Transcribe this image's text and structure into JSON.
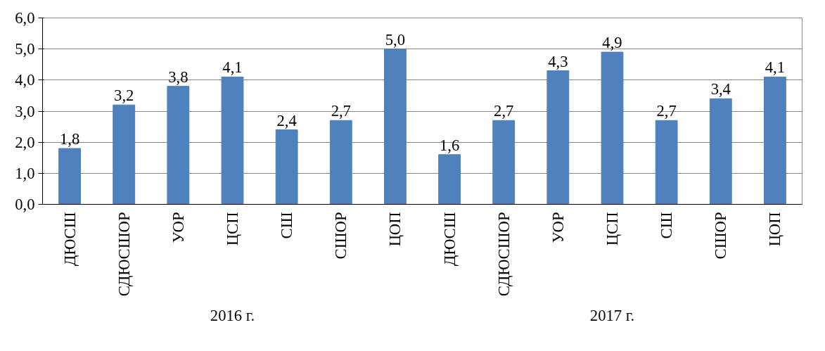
{
  "chart_data": {
    "type": "bar",
    "categories": [
      "ДЮСШ",
      "СДЮСШОР",
      "УОР",
      "ЦСП",
      "СШ",
      "СШОР",
      "ЦОП",
      "ДЮСШ",
      "СДЮСШОР",
      "УОР",
      "ЦСП",
      "СШ",
      "СШОР",
      "ЦОП"
    ],
    "values": [
      1.8,
      3.2,
      3.8,
      4.1,
      2.4,
      2.7,
      5.0,
      1.6,
      2.7,
      4.3,
      4.9,
      2.7,
      3.4,
      4.1
    ],
    "color": "#4f81bd",
    "ylim": [
      0,
      6
    ],
    "yticks": [
      {
        "value": 0,
        "label": "0,0"
      },
      {
        "value": 1,
        "label": "1,0"
      },
      {
        "value": 2,
        "label": "2,0"
      },
      {
        "value": 3,
        "label": "3,0"
      },
      {
        "value": 4,
        "label": "4,0"
      },
      {
        "value": 5,
        "label": "5,0"
      },
      {
        "value": 6,
        "label": "6,0"
      }
    ],
    "grid": "y",
    "value_labels": [
      "1,8",
      "3,2",
      "3,8",
      "4,1",
      "2,4",
      "2,7",
      "5,0",
      "1,6",
      "2,7",
      "4,3",
      "4,9",
      "2,7",
      "3,4",
      "4,1"
    ],
    "annotations": [
      "2016 г.",
      "2017 г."
    ]
  }
}
